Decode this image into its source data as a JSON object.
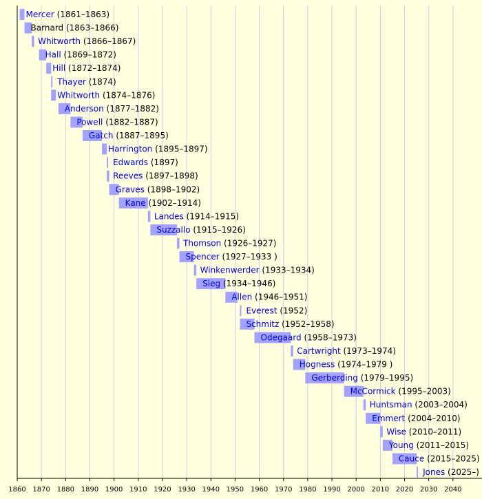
{
  "chart_data": {
    "type": "timeline",
    "categories": [
      "Mercer",
      "Barnard",
      "Whitworth",
      "Hall",
      "Hill",
      "Thayer",
      "Whitworth",
      "Anderson",
      "Powell",
      "Gatch",
      "Harrington",
      "Edwards",
      "Reeves",
      "Graves",
      "Kane",
      "Landes",
      "Suzzallo",
      "Thomson",
      "Spencer",
      "Winkenwerder",
      "Sieg",
      "Allen",
      "Everest",
      "Schmitz",
      "Odegaard",
      "Cartwright",
      "Hogness",
      "Gerberding",
      "McCormick",
      "Huntsman",
      "Emmert",
      "Wise",
      "Young",
      "Cauce",
      "Jones"
    ],
    "start": [
      1861,
      1863,
      1866,
      1869,
      1872,
      1874,
      1874,
      1877,
      1882,
      1887,
      1895,
      1897,
      1897,
      1898,
      1902,
      1914,
      1915,
      1926,
      1927,
      1933,
      1934,
      1946,
      1952,
      1952,
      1958,
      1973,
      1974,
      1979,
      1995,
      2003,
      2004,
      2010,
      2011,
      2015,
      2025
    ],
    "end": [
      1863,
      1866,
      1867,
      1872,
      1874,
      1874,
      1876,
      1882,
      1887,
      1895,
      1897,
      1897,
      1898,
      1902,
      1914,
      1915,
      1926,
      1927,
      1933,
      1934,
      1946,
      1951,
      1952,
      1958,
      1973,
      1974,
      1979,
      1995,
      2003,
      2004,
      2010,
      2011,
      2015,
      2025,
      null
    ],
    "labels": [
      "(1861–1863)",
      "(1863–1866)",
      "(1866–1867)",
      "(1869–1872)",
      "(1872–1874)",
      "(1874)",
      "(1874–1876)",
      "(1877–1882)",
      "(1882–1887)",
      "(1887–1895)",
      "(1895–1897)",
      "(1897)",
      "(1897–1898)",
      "(1898–1902)",
      "(1902–1914)",
      "(1914–1915)",
      "(1915–1926)",
      "(1926–1927)",
      "(1927–1933 )",
      "(1933–1934)",
      "(1934–1946)",
      "(1946–1951)",
      "(1952)",
      "(1952–1958)",
      "(1958–1973)",
      "(1973–1974)",
      "(1974–1979 )",
      "(1979–1995)",
      "(1995–2003)",
      "(2003–2004)",
      "(2004–2010)",
      "(2010–2011)",
      "(2011–2015)",
      "(2015–2025)",
      "(2025–)"
    ],
    "linked": [
      true,
      false,
      true,
      true,
      true,
      true,
      true,
      true,
      true,
      true,
      true,
      true,
      true,
      true,
      true,
      true,
      true,
      true,
      true,
      true,
      true,
      true,
      true,
      true,
      true,
      true,
      true,
      true,
      true,
      true,
      true,
      true,
      true,
      true,
      true
    ],
    "color": "#a3a3ff",
    "link_color": "#0000ee",
    "background": "#ffffe0",
    "grid": true,
    "xlim": [
      1860,
      2052
    ],
    "xticks": [
      1860,
      1870,
      1880,
      1890,
      1900,
      1910,
      1920,
      1930,
      1940,
      1950,
      1960,
      1970,
      1980,
      1990,
      2000,
      2010,
      2020,
      2030,
      2040
    ]
  }
}
